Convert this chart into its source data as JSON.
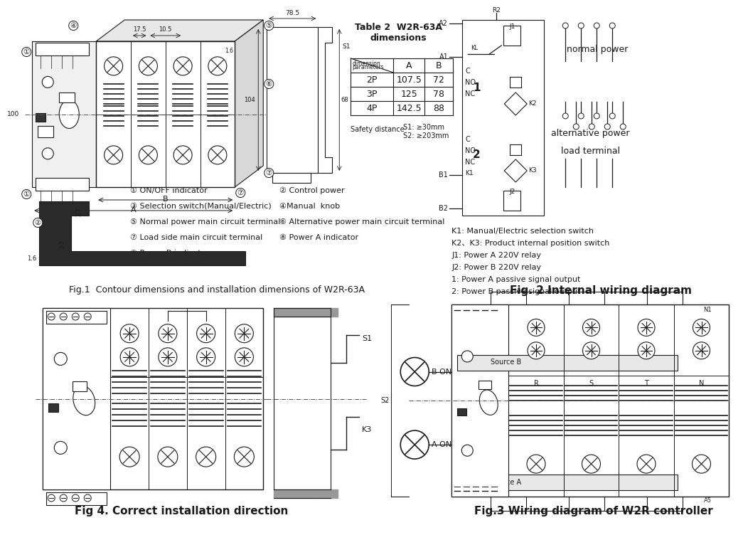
{
  "background_color": "#ffffff",
  "fig_width": 10.0,
  "fig_height": 7.24,
  "table_title": "Table 2  W2R-63A\ndimensions",
  "table_note": "Safety distance",
  "table_note2": "S1: ≥30mm\nS2: ≥203mm",
  "legend_items_left": [
    "① ON/OFF indicator",
    "③ Selection switch(Manual/Electric)",
    "⑤ Normal power main circuit terminal",
    "⑦ Load side main circuit terminal",
    "⑨ Power B indicator"
  ],
  "legend_items_right": [
    "② Control power",
    "④Manual  knob",
    "⑥ Alternative power main circuit terminal",
    "⑧ Power A indicator"
  ],
  "fig1_caption": "Fig.1  Contour dimensions and installation dimensions of W2R-63A",
  "fig2_caption": "Fig. 2 Internal wiring diagram",
  "fig3_caption": "Fig.3 Wiring diagram of W2R controller",
  "fig4_caption": "Fig 4. Correct installation direction",
  "wiring_labels": [
    "normal power",
    "alternative power",
    "load terminal"
  ],
  "k_labels": [
    "K1: Manual/Electric selection switch",
    "K2、K3: Product internal position switch",
    "J1: Power A 220V relay",
    "J2: Power B 220V relay",
    "1: Power A passive signal output",
    "2: Power B passive signal output"
  ],
  "table_rows": [
    [
      "2P",
      "107.5",
      "72"
    ],
    [
      "3P",
      "125",
      "78"
    ],
    [
      "4P",
      "142.5",
      "88"
    ]
  ],
  "line_color": "#1a1a1a",
  "text_color": "#1a1a1a"
}
